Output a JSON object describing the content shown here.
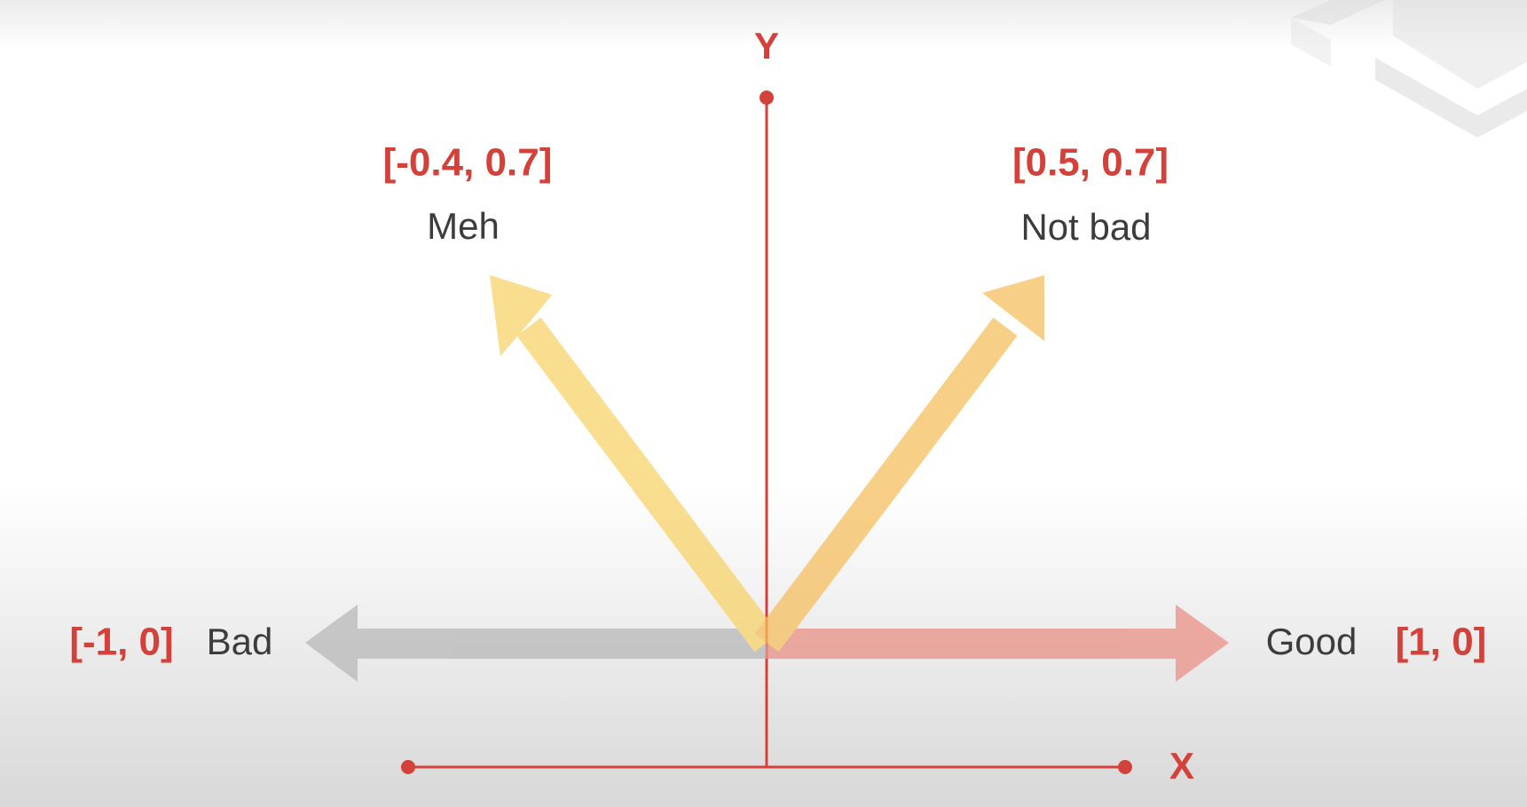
{
  "axes": {
    "y_label": "Y",
    "x_label": "X"
  },
  "vectors": [
    {
      "coords": "[-0.4, 0.7]",
      "label": "Meh"
    },
    {
      "coords": "[0.5, 0.7]",
      "label": "Not bad"
    },
    {
      "coords": "[-1, 0]",
      "label": "Bad"
    },
    {
      "coords": "[1, 0]",
      "label": "Good"
    }
  ]
}
